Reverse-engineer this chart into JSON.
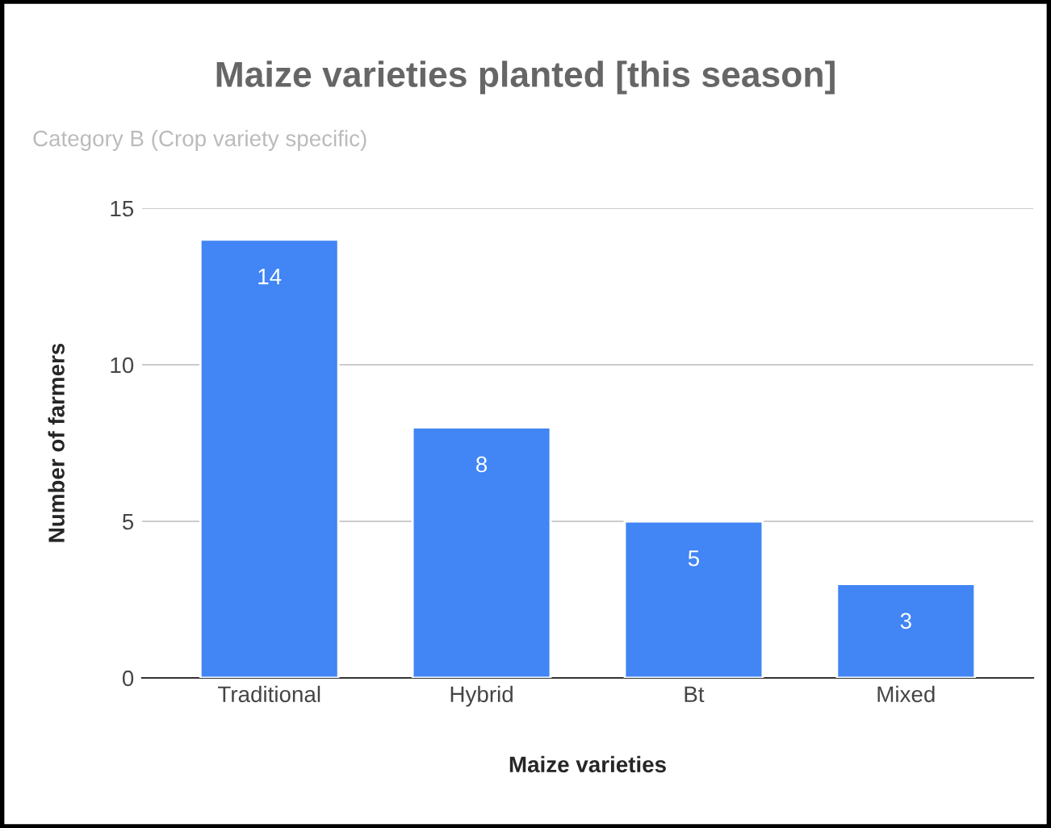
{
  "chart_data": {
    "type": "bar",
    "title": "Maize varieties planted [this season]",
    "subtitle": "Category B (Crop variety specific)",
    "xlabel": "Maize varieties",
    "ylabel": "Number of farmers",
    "categories": [
      "Traditional",
      "Hybrid",
      "Bt",
      "Mixed"
    ],
    "values": [
      14,
      8,
      5,
      3
    ],
    "color": "#4285f4",
    "ylim": [
      0,
      15
    ],
    "yticks": [
      0,
      5,
      10,
      15
    ],
    "grid": "y",
    "data_labels": true
  }
}
